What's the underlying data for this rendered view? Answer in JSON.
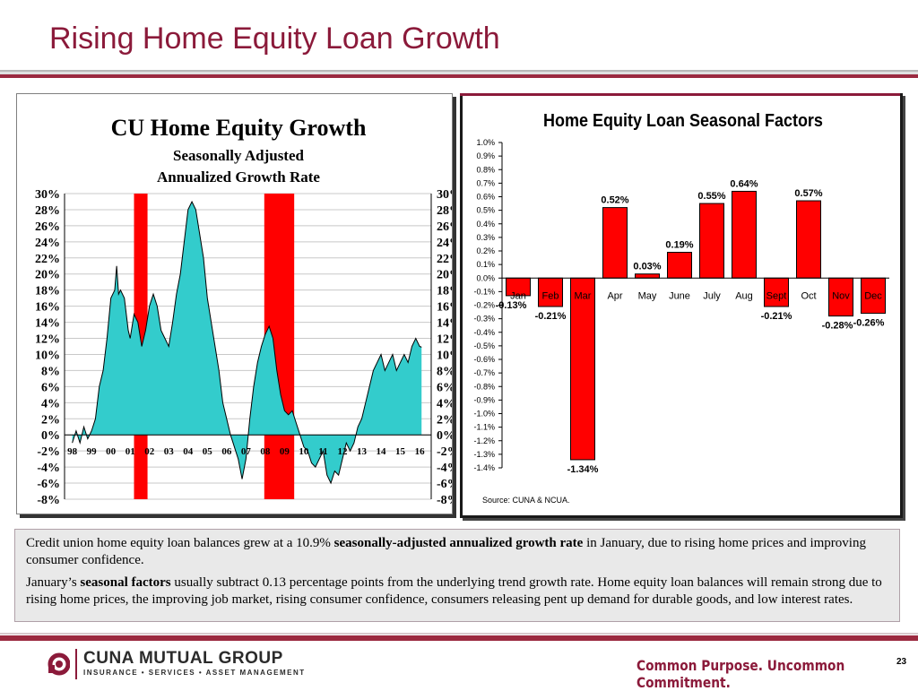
{
  "slide": {
    "title": "Rising Home Equity Loan Growth",
    "page_number": "23"
  },
  "colors": {
    "accent": "#8b1a3a",
    "area_fill": "#33cccc",
    "red": "#ff0000"
  },
  "chart_data": [
    {
      "type": "area",
      "title": "CU Home Equity Growth",
      "subtitle": "Seasonally Adjusted",
      "subtitle2": "Annualized Growth Rate",
      "ylim": [
        -8,
        30
      ],
      "y_ticks": [
        "30%",
        "28%",
        "26%",
        "24%",
        "22%",
        "20%",
        "18%",
        "16%",
        "14%",
        "12%",
        "10%",
        "8%",
        "6%",
        "4%",
        "2%",
        "0%",
        "-2%",
        "-4%",
        "-6%",
        "-8%"
      ],
      "x_ticks": [
        "98",
        "99",
        "00",
        "01",
        "02",
        "03",
        "04",
        "05",
        "06",
        "07",
        "08",
        "09",
        "10",
        "11",
        "12",
        "13",
        "14",
        "15",
        "16"
      ],
      "recession_bands": [
        {
          "start": 2001.2,
          "end": 2001.9
        },
        {
          "start": 2007.95,
          "end": 2009.5
        }
      ],
      "grid": true,
      "legend": "none",
      "series": [
        {
          "x": [
            1998.0,
            1998.2,
            1998.4,
            1998.6,
            1998.8,
            1999.0,
            1999.2,
            1999.4,
            1999.6,
            1999.8,
            2000.0,
            2000.2,
            2000.3,
            2000.4,
            2000.5,
            2000.7,
            2000.9,
            2001.0,
            2001.2,
            2001.4,
            2001.6,
            2001.8,
            2002.0,
            2002.2,
            2002.4,
            2002.6,
            2002.8,
            2003.0,
            2003.2,
            2003.4,
            2003.6,
            2003.8,
            2004.0,
            2004.2,
            2004.4,
            2004.6,
            2004.8,
            2005.0,
            2005.2,
            2005.4,
            2005.6,
            2005.8,
            2006.0,
            2006.2,
            2006.4,
            2006.6,
            2006.8,
            2007.0,
            2007.2,
            2007.4,
            2007.6,
            2007.8,
            2008.0,
            2008.2,
            2008.4,
            2008.6,
            2008.8,
            2009.0,
            2009.2,
            2009.4,
            2009.6,
            2009.8,
            2010.0,
            2010.2,
            2010.4,
            2010.6,
            2010.8,
            2011.0,
            2011.2,
            2011.4,
            2011.6,
            2011.8,
            2012.0,
            2012.2,
            2012.4,
            2012.6,
            2012.8,
            2013.0,
            2013.2,
            2013.4,
            2013.6,
            2013.8,
            2014.0,
            2014.2,
            2014.4,
            2014.6,
            2014.8,
            2015.0,
            2015.2,
            2015.4,
            2015.6,
            2015.8,
            2016.0,
            2016.1
          ],
          "values": [
            -1,
            0.5,
            -1,
            1,
            -0.5,
            0.5,
            2,
            6,
            8,
            12,
            17,
            18,
            21,
            17.5,
            18,
            17,
            13,
            12,
            15,
            14,
            11,
            13,
            16,
            17.5,
            16,
            13,
            12,
            11,
            14,
            17.5,
            20,
            24,
            28,
            29,
            28,
            25,
            22,
            17,
            14,
            11,
            8,
            4,
            2,
            0,
            -1.5,
            -3,
            -5.5,
            -3,
            2,
            6,
            9,
            11,
            12.5,
            13.5,
            12,
            8,
            5,
            3,
            2.5,
            3,
            1.5,
            0,
            -1.5,
            -2,
            -3.5,
            -4,
            -3,
            -2,
            -5,
            -6,
            -4.5,
            -5,
            -3,
            -1,
            -2,
            -1,
            1,
            2,
            4,
            6,
            8,
            9,
            10,
            8,
            9,
            10,
            8,
            9,
            10,
            9,
            11,
            12,
            11,
            10.9
          ]
        }
      ]
    },
    {
      "type": "bar",
      "title": "Home Equity Loan Seasonal Factors",
      "categories": [
        "Jan",
        "Feb",
        "Mar",
        "Apr",
        "May",
        "June",
        "July",
        "Aug",
        "Sept",
        "Oct",
        "Nov",
        "Dec"
      ],
      "values": [
        -0.13,
        -0.21,
        -1.34,
        0.52,
        0.03,
        0.19,
        0.55,
        0.64,
        -0.21,
        0.57,
        -0.28,
        -0.26
      ],
      "data_labels": [
        "-0.13%",
        "-0.21%",
        "-1.34%",
        "0.52%",
        "0.03%",
        "0.19%",
        "0.55%",
        "0.64%",
        "-0.21%",
        "0.57%",
        "-0.28%",
        "-0.26%"
      ],
      "ylim": [
        -1.4,
        1.0
      ],
      "y_ticks": [
        "1.0%",
        "0.9%",
        "0.8%",
        "0.7%",
        "0.6%",
        "0.5%",
        "0.4%",
        "0.3%",
        "0.2%",
        "0.1%",
        "0.0%",
        "-0.1%",
        "-0.2%",
        "-0.3%",
        "-0.4%",
        "-0.5%",
        "-0.6%",
        "-0.7%",
        "-0.8%",
        "-0.9%",
        "-1.0%",
        "-1.1%",
        "-1.2%",
        "-1.3%",
        "-1.4%"
      ],
      "source": "Source: CUNA & NCUA.",
      "grid": false
    }
  ],
  "textbox": {
    "p1_a": "Credit union home equity loan balances grew at a 10.9% ",
    "p1_b": "seasonally-adjusted annualized growth rate",
    "p1_c": " in January, due to rising home prices and improving consumer confidence.",
    "p2_a": "January’s  ",
    "p2_b": "seasonal factors",
    "p2_c": " usually subtract 0.13 percentage points from the underlying trend growth rate. Home equity loan balances will remain strong due to rising home prices, the improving job market, rising consumer confidence, consumers releasing pent up demand for durable goods, and low interest rates."
  },
  "footer": {
    "logo_name": "CUNA MUTUAL GROUP",
    "logo_tag": "INSURANCE • SERVICES • ASSET MANAGEMENT",
    "tagline": "Common Purpose. Uncommon Commitment."
  }
}
